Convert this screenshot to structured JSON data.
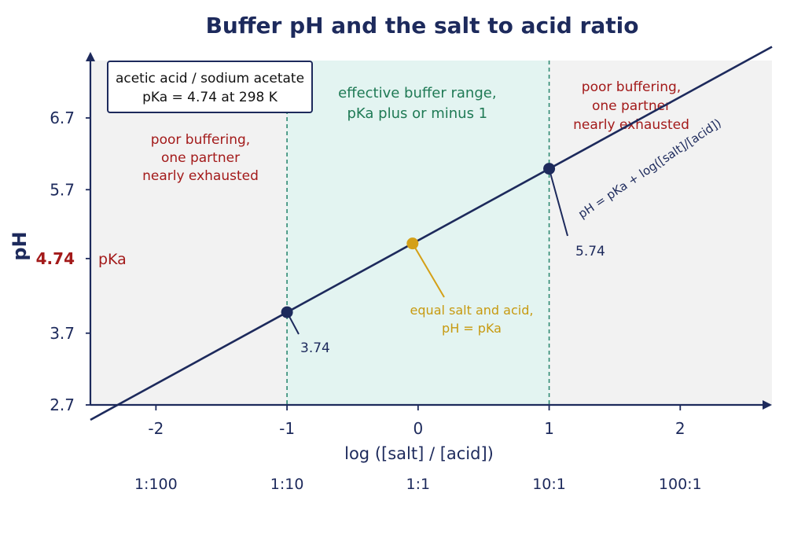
{
  "chart_data": {
    "type": "line",
    "title": "Buffer pH and the salt to acid ratio",
    "xlabel": "log ([salt] / [acid])",
    "ylabel": "pH",
    "xlim": [
      -2.5,
      2.7
    ],
    "ylim": [
      2.7,
      6.7
    ],
    "x_ticks": [
      {
        "value": -2,
        "label": "-2"
      },
      {
        "value": -1,
        "label": "-1"
      },
      {
        "value": 0,
        "label": "0"
      },
      {
        "value": 1,
        "label": "1"
      },
      {
        "value": 2,
        "label": "2"
      }
    ],
    "y_ticks": [
      {
        "value": 2.7,
        "label": "2.7"
      },
      {
        "value": 3.7,
        "label": "3.7"
      },
      {
        "value": 4.74,
        "label": "4.74"
      },
      {
        "value": 5.7,
        "label": "5.7"
      },
      {
        "value": 6.7,
        "label": "6.7"
      }
    ],
    "ratio_labels": [
      {
        "value": -2,
        "label": "1:100"
      },
      {
        "value": -1,
        "label": "1:10"
      },
      {
        "value": 0,
        "label": "1:1"
      },
      {
        "value": 1,
        "label": "10:1"
      },
      {
        "value": 2,
        "label": "100:1"
      }
    ],
    "line": {
      "x": [
        -2.5,
        2.7
      ],
      "y": [
        2.24,
        7.44
      ],
      "label": "pH = pKa + log([salt]/[acid])",
      "color": "#1d2a5c"
    },
    "points": [
      {
        "x": -1,
        "y": 3.74,
        "label": "3.74",
        "color": "#1d2a5c"
      },
      {
        "x": 0,
        "y": 4.74,
        "label": "equal salt and acid,",
        "label2": "pH = pKa",
        "color": "#d4a017"
      },
      {
        "x": 1,
        "y": 5.74,
        "label": "5.74",
        "color": "#1d2a5c"
      }
    ],
    "pka_line": {
      "value": 4.74,
      "label": "pKa",
      "color": "#a31a1a"
    },
    "regions": [
      {
        "x_from": -2.5,
        "x_to": -1,
        "lines": [
          "poor buffering,",
          "one partner",
          "nearly exhausted"
        ],
        "color": "#f2f2f2"
      },
      {
        "x_from": -1,
        "x_to": 1,
        "lines": [
          "effective buffer range,",
          "pKa plus or minus 1"
        ],
        "color": "#e3f4f1"
      },
      {
        "x_from": 1,
        "x_to": 2.7,
        "lines": [
          "poor buffering,",
          "one partner",
          "nearly exhausted"
        ],
        "color": "#f2f2f2"
      }
    ],
    "legend": {
      "lines": [
        "acetic acid / sodium acetate",
        "pKa = 4.74 at 298 K"
      ],
      "placement": "top-left"
    },
    "grid": false
  }
}
